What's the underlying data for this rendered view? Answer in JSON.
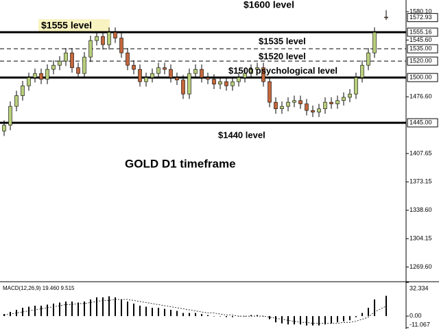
{
  "chart_data": {
    "type": "candlestick",
    "title": "GOLD D1 timeframe",
    "annotations": [
      "$1600 level",
      "$1555 level",
      "$1535 level",
      "$1520 level",
      "$1500 psychological level",
      "$1440  level"
    ],
    "up_color": "#b9cf7c",
    "down_color": "#c4673c",
    "open": [
      1435,
      1442,
      1465,
      1478,
      1490,
      1500,
      1505,
      1498,
      1510,
      1515,
      1520,
      1530,
      1512,
      1505,
      1525,
      1545,
      1550,
      1540,
      1555,
      1548,
      1530,
      1515,
      1510,
      1495,
      1500,
      1505,
      1512,
      1510,
      1500,
      1497,
      1480,
      1505,
      1510,
      1500,
      1498,
      1492,
      1495,
      1490,
      1495,
      1500,
      1505,
      1510,
      1512,
      1495,
      1470,
      1462,
      1465,
      1470,
      1472,
      1468,
      1460,
      1458,
      1462,
      1470,
      1468,
      1472,
      1476,
      1480,
      1500,
      1515,
      1530,
      1573.5
    ],
    "high": [
      1448,
      1471,
      1484,
      1496,
      1506,
      1511,
      1511,
      1516,
      1521,
      1526,
      1536,
      1536,
      1518,
      1531,
      1551,
      1556,
      1556,
      1561,
      1561,
      1554,
      1536,
      1521,
      1516,
      1506,
      1511,
      1518,
      1518,
      1516,
      1506,
      1503,
      1511,
      1516,
      1516,
      1506,
      1504,
      1501,
      1501,
      1501,
      1506,
      1511,
      1516,
      1518,
      1518,
      1501,
      1476,
      1471,
      1476,
      1478,
      1478,
      1474,
      1466,
      1468,
      1476,
      1476,
      1478,
      1482,
      1486,
      1506,
      1521,
      1536,
      1561,
      1582
    ],
    "low": [
      1429,
      1436,
      1459,
      1472,
      1484,
      1494,
      1492,
      1492,
      1504,
      1509,
      1514,
      1506,
      1499,
      1499,
      1519,
      1539,
      1534,
      1534,
      1542,
      1524,
      1509,
      1504,
      1489,
      1489,
      1494,
      1499,
      1504,
      1494,
      1491,
      1474,
      1474,
      1499,
      1494,
      1492,
      1486,
      1486,
      1484,
      1484,
      1489,
      1494,
      1499,
      1504,
      1489,
      1464,
      1456,
      1456,
      1459,
      1464,
      1462,
      1454,
      1452,
      1452,
      1456,
      1462,
      1462,
      1466,
      1470,
      1474,
      1494,
      1509,
      1524,
      1570
    ],
    "close": [
      1442,
      1465,
      1478,
      1490,
      1500,
      1505,
      1498,
      1510,
      1515,
      1520,
      1530,
      1512,
      1505,
      1525,
      1545,
      1550,
      1540,
      1555,
      1548,
      1530,
      1515,
      1510,
      1495,
      1500,
      1505,
      1512,
      1510,
      1500,
      1497,
      1480,
      1505,
      1510,
      1500,
      1498,
      1492,
      1495,
      1490,
      1495,
      1500,
      1505,
      1510,
      1512,
      1495,
      1470,
      1462,
      1465,
      1470,
      1472,
      1468,
      1460,
      1458,
      1462,
      1470,
      1468,
      1472,
      1476,
      1480,
      1500,
      1515,
      1530,
      1555,
      1572.93
    ],
    "ylim": [
      1252.6,
      1594.3
    ],
    "yticks": [
      {
        "value": 1580.1,
        "label": "1580.10"
      },
      {
        "value": 1545.6,
        "label": "1545.60"
      },
      {
        "value": 1476.6,
        "label": "1476.60"
      },
      {
        "value": 1407.65,
        "label": "1407.65"
      },
      {
        "value": 1373.15,
        "label": "1373.15"
      },
      {
        "value": 1338.6,
        "label": "1338.60"
      },
      {
        "value": 1304.15,
        "label": "1304.15"
      },
      {
        "value": 1269.6,
        "label": "1269.60"
      }
    ],
    "levels": [
      {
        "value": 1555.16,
        "label": "1555.16",
        "style": "solid"
      },
      {
        "value": 1535,
        "label": "1535.00",
        "style": "dashed"
      },
      {
        "value": 1520,
        "label": "1520.00",
        "style": "dashed"
      },
      {
        "value": 1500,
        "label": "1500.00",
        "style": "solid"
      },
      {
        "value": 1445,
        "label": "1445.00",
        "style": "solid"
      }
    ],
    "last_price": {
      "value": 1572.93,
      "label": "1572.93"
    },
    "macd": {
      "label": "MACD(12,26,9) 19.460 9.515",
      "histogram": [
        2,
        4,
        6,
        8,
        9,
        10,
        10,
        11,
        12,
        13,
        14,
        14,
        13,
        14,
        16,
        18,
        18,
        19,
        18,
        16,
        14,
        12,
        10,
        9,
        8,
        8,
        7,
        6,
        5,
        3,
        3,
        3,
        2,
        1,
        0,
        0,
        -1,
        -1,
        0,
        0,
        1,
        1,
        0,
        -3,
        -6,
        -7,
        -8,
        -8,
        -8,
        -9,
        -9,
        -9,
        -8,
        -7,
        -6,
        -5,
        -4,
        -1,
        3,
        8,
        16,
        19.46
      ],
      "signal": [
        1,
        2,
        3,
        4,
        5,
        6,
        7,
        8,
        9,
        10,
        11,
        11,
        12,
        12,
        13,
        14,
        15,
        15,
        16,
        16,
        16,
        15,
        14,
        13,
        12,
        11,
        10,
        9,
        8,
        7,
        6,
        5,
        4,
        3,
        3,
        2,
        1,
        1,
        0,
        0,
        0,
        0,
        0,
        -1,
        -2,
        -3,
        -4,
        -5,
        -6,
        -6,
        -7,
        -7,
        -7,
        -7,
        -7,
        -6,
        -6,
        -5,
        -3,
        -1,
        4,
        9.515
      ],
      "ylim": [
        -11.067,
        32.334
      ],
      "yticks": [
        {
          "value": 32.334,
          "label": "32.334"
        },
        {
          "value": 0,
          "label": "0.00"
        },
        {
          "value": -11.067,
          "label": "-11.067"
        }
      ]
    }
  }
}
